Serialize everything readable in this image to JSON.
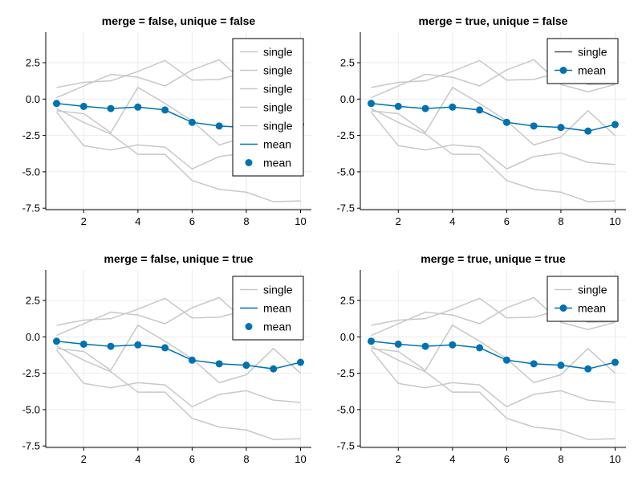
{
  "chart_data": [
    {
      "type": "line",
      "title": "merge = false, unique = false",
      "xlim": [
        0.6,
        10.4
      ],
      "ylim": [
        -7.6,
        4.6
      ],
      "xticks": [
        2,
        4,
        6,
        8,
        10
      ],
      "yticks": [
        -7.5,
        -5.0,
        -2.5,
        0.0,
        2.5
      ],
      "ytick_labels": [
        "-7.5",
        "-5.0",
        "-2.5",
        "0.0",
        "2.5"
      ],
      "grid": true,
      "legend_position": "top-right",
      "legend": [
        {
          "label": "single",
          "kind": "line",
          "color": "#c8c8c8"
        },
        {
          "label": "single",
          "kind": "line",
          "color": "#c8c8c8"
        },
        {
          "label": "single",
          "kind": "line",
          "color": "#c8c8c8"
        },
        {
          "label": "single",
          "kind": "line",
          "color": "#c8c8c8"
        },
        {
          "label": "single",
          "kind": "line",
          "color": "#c8c8c8"
        },
        {
          "label": "mean",
          "kind": "line",
          "color": "#0072b2"
        },
        {
          "label": "mean",
          "kind": "marker",
          "color": "#0072b2"
        }
      ]
    },
    {
      "type": "line",
      "title": "merge = true, unique = false",
      "xlim": [
        0.6,
        10.4
      ],
      "ylim": [
        -7.6,
        4.6
      ],
      "xticks": [
        2,
        4,
        6,
        8,
        10
      ],
      "yticks": [
        -7.5,
        -5.0,
        -2.5,
        0.0,
        2.5
      ],
      "ytick_labels": [
        "-7.5",
        "-5.0",
        "-2.5",
        "0.0",
        "2.5"
      ],
      "grid": true,
      "legend_position": "top-right",
      "legend": [
        {
          "label": "single",
          "kind": "line",
          "color": "#555555"
        },
        {
          "label": "mean",
          "kind": "line+marker",
          "color": "#0072b2"
        }
      ]
    },
    {
      "type": "line",
      "title": "merge = false, unique = true",
      "xlim": [
        0.6,
        10.4
      ],
      "ylim": [
        -7.6,
        4.6
      ],
      "xticks": [
        2,
        4,
        6,
        8,
        10
      ],
      "yticks": [
        -7.5,
        -5.0,
        -2.5,
        0.0,
        2.5
      ],
      "ytick_labels": [
        "-7.5",
        "-5.0",
        "-2.5",
        "0.0",
        "2.5"
      ],
      "grid": true,
      "legend_position": "top-right",
      "legend": [
        {
          "label": "single",
          "kind": "line",
          "color": "#c8c8c8"
        },
        {
          "label": "mean",
          "kind": "line",
          "color": "#0072b2"
        },
        {
          "label": "mean",
          "kind": "marker",
          "color": "#0072b2"
        }
      ]
    },
    {
      "type": "line",
      "title": "merge = true, unique = true",
      "xlim": [
        0.6,
        10.4
      ],
      "ylim": [
        -7.6,
        4.6
      ],
      "xticks": [
        2,
        4,
        6,
        8,
        10
      ],
      "yticks": [
        -7.5,
        -5.0,
        -2.5,
        0.0,
        2.5
      ],
      "ytick_labels": [
        "-7.5",
        "-5.0",
        "-2.5",
        "0.0",
        "2.5"
      ],
      "grid": true,
      "legend_position": "top-right",
      "legend": [
        {
          "label": "single",
          "kind": "line",
          "color": "#c8c8c8"
        },
        {
          "label": "mean",
          "kind": "line+marker",
          "color": "#0072b2"
        }
      ]
    }
  ],
  "shared_series": {
    "x": [
      1,
      2,
      3,
      4,
      5,
      6,
      7,
      8,
      9,
      10
    ],
    "single": [
      {
        "values": [
          0.8,
          1.15,
          1.25,
          1.9,
          2.65,
          1.3,
          1.35,
          1.85,
          1.0,
          1.05
        ],
        "color": "#c8c8c8"
      },
      {
        "values": [
          0.1,
          0.9,
          1.7,
          1.5,
          0.9,
          2.0,
          2.7,
          1.0,
          0.5,
          1.0
        ],
        "color": "#c8c8c8"
      },
      {
        "values": [
          -0.8,
          -1.0,
          -2.3,
          0.8,
          -0.3,
          -1.5,
          -3.15,
          -2.6,
          -0.8,
          -2.5
        ],
        "color": "#c8c8c8"
      },
      {
        "values": [
          -0.9,
          -3.2,
          -3.5,
          -3.15,
          -3.3,
          -4.8,
          -3.95,
          -3.7,
          -4.35,
          -4.5
        ],
        "color": "#c8c8c8"
      },
      {
        "values": [
          -0.65,
          -1.6,
          -2.4,
          -3.8,
          -3.8,
          -5.6,
          -6.2,
          -6.4,
          -7.05,
          -7.0
        ],
        "color": "#c8c8c8"
      }
    ],
    "mean": {
      "values": [
        -0.3,
        -0.5,
        -0.65,
        -0.55,
        -0.75,
        -1.6,
        -1.85,
        -1.95,
        -2.2,
        -1.75
      ],
      "color": "#0072b2"
    }
  }
}
